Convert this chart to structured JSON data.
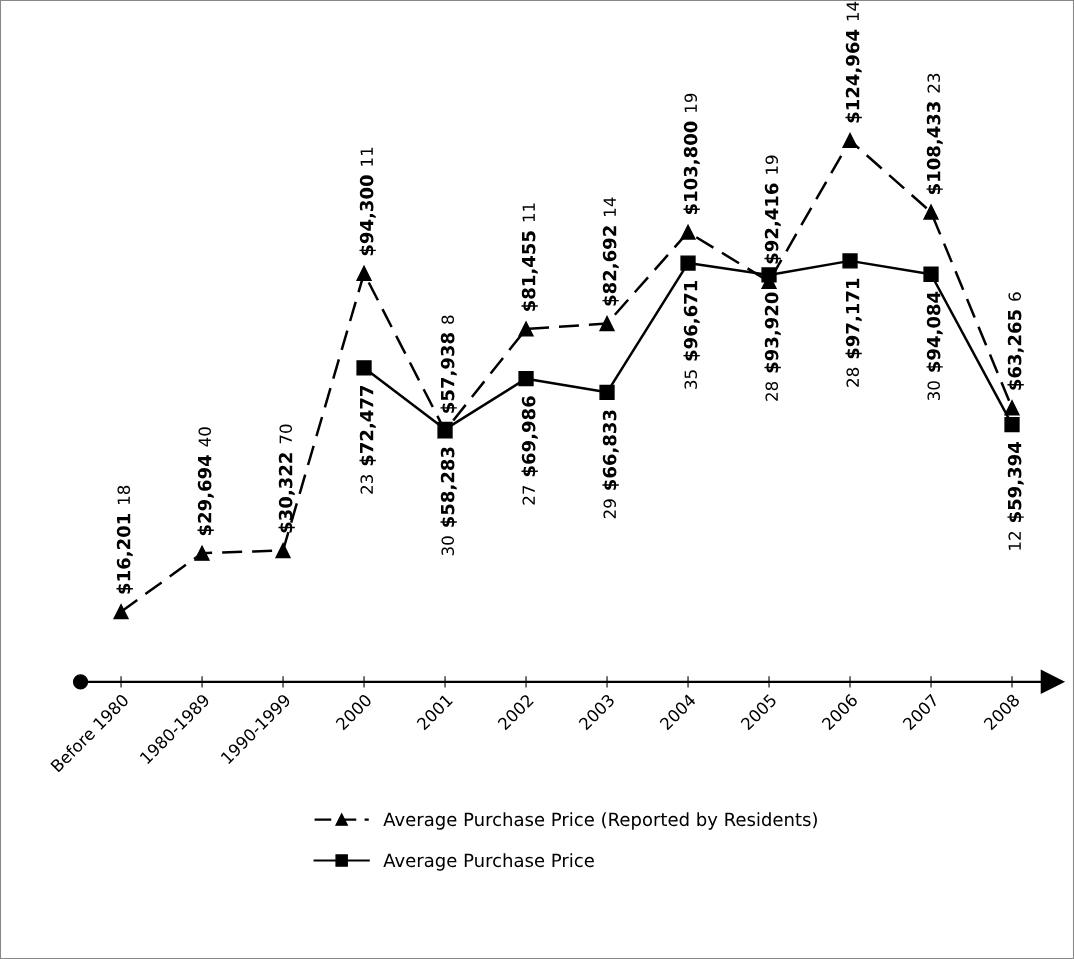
{
  "chart_data": {
    "type": "line",
    "categories": [
      "Before 1980",
      "1980-1989",
      "1990-1999",
      "2000",
      "2001",
      "2002",
      "2003",
      "2004",
      "2005",
      "2006",
      "2007",
      "2008"
    ],
    "series": [
      {
        "name": "Average Purchase Price (Reported by Residents)",
        "color": "#000000",
        "marker": "triangle",
        "line_style": "dashed",
        "values": [
          16201,
          29694,
          30322,
          94300,
          57938,
          81455,
          82692,
          103800,
          92416,
          124964,
          108433,
          63265
        ],
        "value_labels": [
          "$16,201",
          "$29,694",
          "$30,322",
          "$94,300",
          "$57,938",
          "$81,455",
          "$82,692",
          "$103,800",
          "$92,416",
          "$124,964",
          "$108,433",
          "$63,265"
        ]
      },
      {
        "name": "Average Purchase Price",
        "color": "#000000",
        "marker": "square",
        "line_style": "solid",
        "values": [
          null,
          null,
          null,
          72477,
          58283,
          69986,
          66833,
          96671,
          93920,
          97171,
          94084,
          59394
        ],
        "value_labels": [
          null,
          null,
          null,
          "$72,477",
          "$58,283",
          "$69,986",
          "$66,833",
          "$96,671",
          "$93,920",
          "$97,171",
          "$94,084",
          "$59,394"
        ]
      }
    ],
    "annotations": [
      "18",
      "40",
      "70",
      "11",
      "8",
      "11",
      "14",
      "19",
      "19",
      "14",
      "23",
      "6",
      "23",
      "30",
      "27",
      "29",
      "35",
      "28",
      "28",
      "30",
      "12"
    ],
    "legend": "bottom",
    "grid": false
  }
}
